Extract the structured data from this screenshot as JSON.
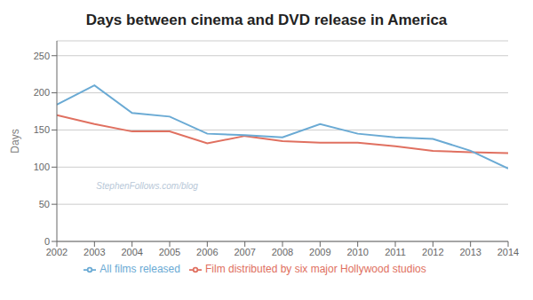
{
  "chart_data": {
    "type": "line",
    "title": "Days between cinema and DVD release in America",
    "x": [
      2002,
      2003,
      2004,
      2005,
      2006,
      2007,
      2008,
      2009,
      2010,
      2011,
      2012,
      2013,
      2014
    ],
    "series": [
      {
        "name": "Film distributed by six major Hollywood studios",
        "color": "#e07060",
        "values": [
          170,
          158,
          148,
          148,
          132,
          142,
          135,
          133,
          133,
          128,
          122,
          120,
          119
        ]
      },
      {
        "name": "All films released",
        "color": "#6aaad4",
        "values": [
          184,
          210,
          173,
          168,
          145,
          143,
          140,
          158,
          145,
          140,
          138,
          122,
          98
        ]
      }
    ],
    "y_label": "Days",
    "xlim": [
      2002,
      2014
    ],
    "xticks": [
      2002,
      2003,
      2004,
      2005,
      2006,
      2007,
      2008,
      2009,
      2010,
      2011,
      2012,
      2013,
      2014
    ],
    "ylim": [
      0,
      270
    ],
    "yticks": [
      0,
      50,
      100,
      150,
      200,
      250
    ],
    "grid": true,
    "legend": "bottom",
    "annotations": [
      "StephenFollows.com/blog"
    ]
  }
}
